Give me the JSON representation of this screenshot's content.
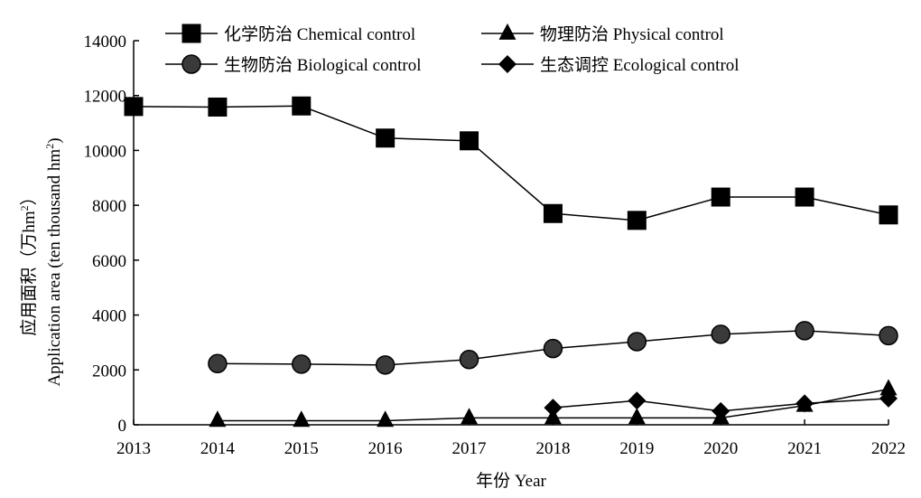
{
  "chart_data": {
    "type": "line",
    "x": [
      2013,
      2014,
      2015,
      2016,
      2017,
      2018,
      2019,
      2020,
      2021,
      2022
    ],
    "xlabel": "年份 Year",
    "ylabel_cn": "应用面积（万hm",
    "ylabel_cn_sup": "2",
    "ylabel_cn_end": "）",
    "ylabel_en": "Application area (ten thousand hm",
    "ylabel_en_sup": "2",
    "ylabel_en_end": ")",
    "xlim": [
      2013,
      2022
    ],
    "ylim": [
      0,
      14000
    ],
    "yticks": [
      0,
      2000,
      4000,
      6000,
      8000,
      10000,
      12000,
      14000
    ],
    "xticks": [
      2013,
      2014,
      2015,
      2016,
      2017,
      2018,
      2019,
      2020,
      2021,
      2022
    ],
    "grid": false,
    "legend_position": "top",
    "series": [
      {
        "name": "化学防治 Chemical control",
        "marker": "square",
        "x": [
          2013,
          2014,
          2015,
          2016,
          2017,
          2018,
          2019,
          2020,
          2021,
          2022
        ],
        "values": [
          11600,
          11580,
          11620,
          10450,
          10350,
          7700,
          7450,
          8300,
          8300,
          7650
        ]
      },
      {
        "name": "物理防治 Physical control",
        "marker": "triangle",
        "x": [
          2014,
          2015,
          2016,
          2017,
          2018,
          2019,
          2020,
          2021,
          2022
        ],
        "values": [
          150,
          150,
          150,
          250,
          250,
          250,
          250,
          700,
          1300
        ]
      },
      {
        "name": "生物防治 Biological control",
        "marker": "circle",
        "x": [
          2014,
          2015,
          2016,
          2017,
          2018,
          2019,
          2020,
          2021,
          2022
        ],
        "values": [
          2230,
          2210,
          2180,
          2380,
          2780,
          3030,
          3300,
          3430,
          3250
        ]
      },
      {
        "name": "生态调控 Ecological control",
        "marker": "diamond",
        "x": [
          2018,
          2019,
          2020,
          2021,
          2022
        ],
        "values": [
          620,
          880,
          500,
          780,
          960
        ]
      }
    ]
  }
}
